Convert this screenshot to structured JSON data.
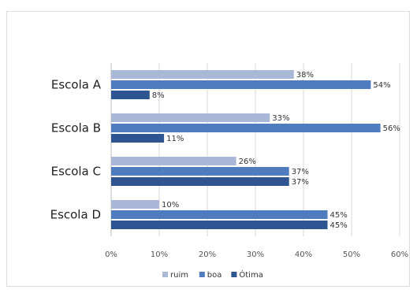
{
  "chart_data": {
    "type": "bar",
    "orientation": "horizontal",
    "categories": [
      "Escola A",
      "Escola B",
      "Escola C",
      "Escola D"
    ],
    "series": [
      {
        "name": "ruim",
        "values": [
          38,
          33,
          26,
          10
        ],
        "labels": [
          "38%",
          "33%",
          "26%",
          "10%"
        ],
        "color": "#a9b8d6"
      },
      {
        "name": "boa",
        "values": [
          54,
          56,
          37,
          45
        ],
        "labels": [
          "54%",
          "56%",
          "37%",
          "45%"
        ],
        "color": "#4f7cbf"
      },
      {
        "name": "Ótima",
        "values": [
          8,
          11,
          37,
          45
        ],
        "labels": [
          "8%",
          "11%",
          "37%",
          "45%"
        ],
        "color": "#2e5591"
      }
    ],
    "xlim": [
      0,
      60
    ],
    "xticks": [
      "0%",
      "10%",
      "20%",
      "30%",
      "40%",
      "50%",
      "60%"
    ],
    "grid": true,
    "legend_position": "bottom",
    "title": "",
    "xlabel": "",
    "ylabel": ""
  }
}
